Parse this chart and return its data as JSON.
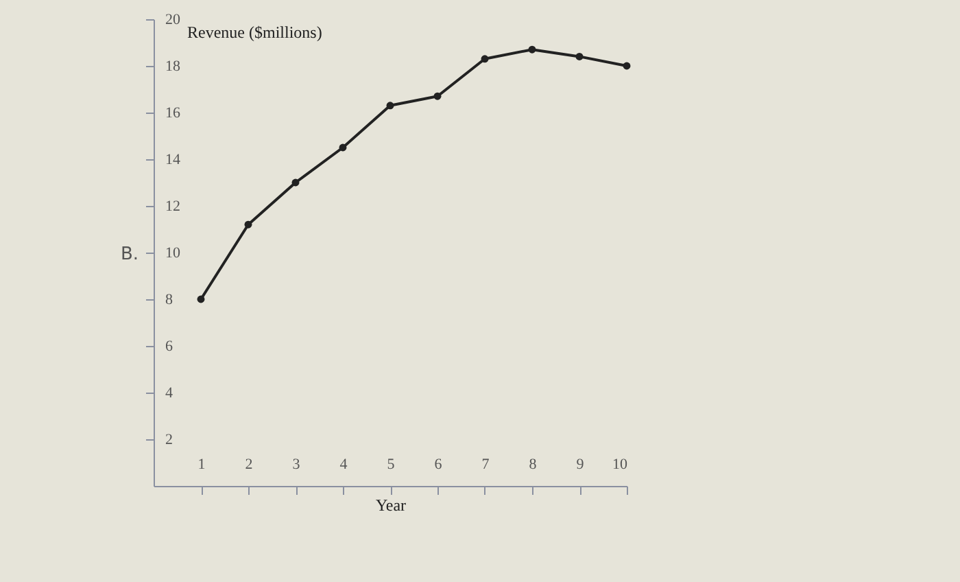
{
  "chart_data": {
    "type": "line",
    "ylabel": "Revenue ($millions)",
    "xlabel": "Year",
    "annotations": [
      "B."
    ],
    "x": [
      1,
      2,
      3,
      4,
      5,
      6,
      7,
      8,
      9,
      10
    ],
    "series": [
      {
        "color": "#222222",
        "values": [
          8.0,
          11.2,
          13.0,
          14.5,
          16.3,
          16.7,
          18.3,
          18.7,
          18.4,
          18.0
        ]
      }
    ],
    "xlim": [
      0,
      10
    ],
    "xticks": [
      1,
      2,
      3,
      4,
      5,
      6,
      7,
      8,
      9,
      10
    ],
    "ylim": [
      0,
      20
    ],
    "yticks": [
      2,
      4,
      6,
      8,
      10,
      12,
      14,
      16,
      18,
      20
    ],
    "grid": false,
    "marker": "circle",
    "line_style": "solid"
  }
}
